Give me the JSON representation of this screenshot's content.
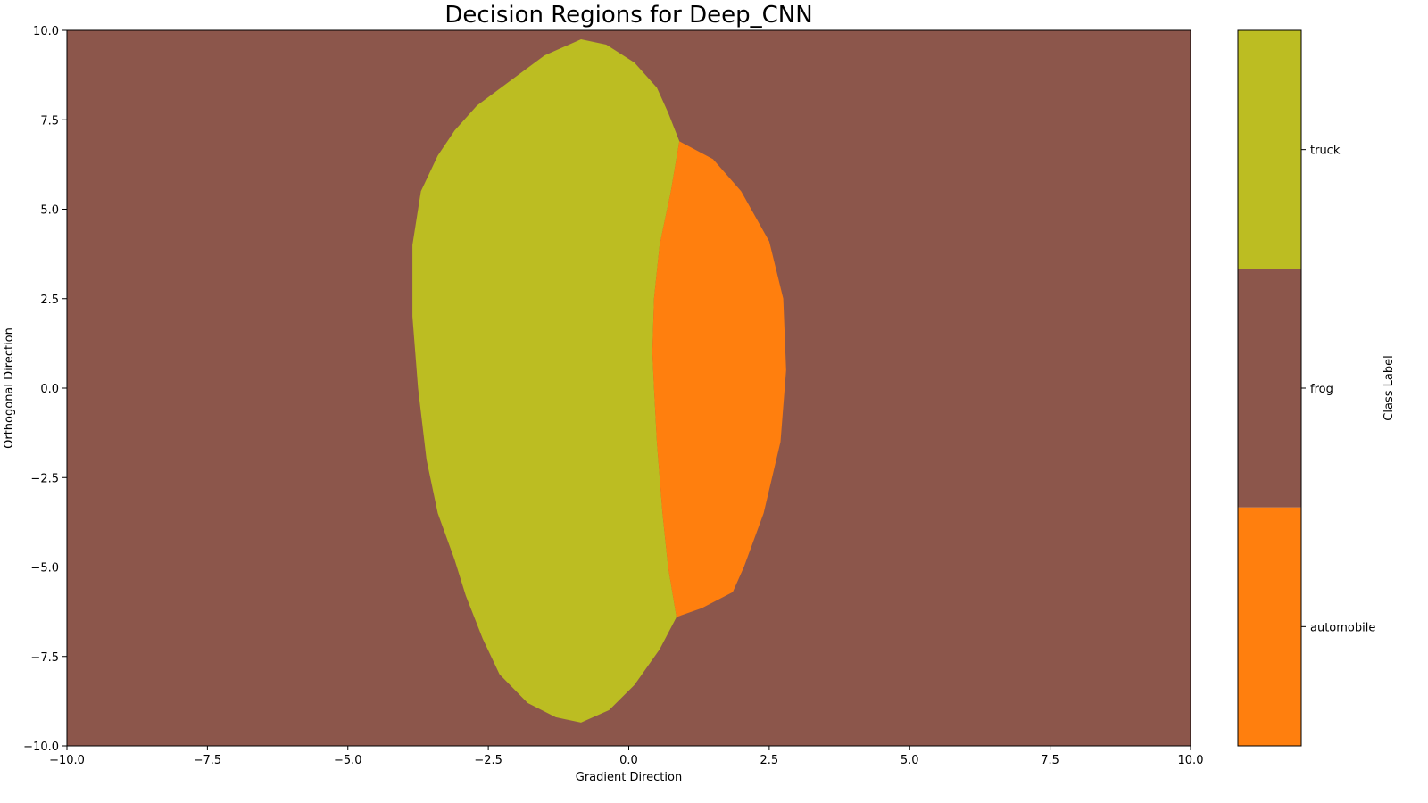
{
  "chart_data": {
    "type": "heatmap",
    "title": "Decision Regions for Deep_CNN",
    "xlabel": "Gradient Direction",
    "ylabel": "Orthogonal Direction",
    "xlim": [
      -10,
      10
    ],
    "ylim": [
      -10,
      10
    ],
    "xticks": [
      -10,
      -7.5,
      -5,
      -2.5,
      0,
      2.5,
      5,
      7.5,
      10
    ],
    "yticks": [
      -10,
      -7.5,
      -5,
      -2.5,
      0,
      2.5,
      5,
      7.5,
      10
    ],
    "xtick_labels": [
      "−10.0",
      "−7.5",
      "−5.0",
      "−2.5",
      "0.0",
      "2.5",
      "5.0",
      "7.5",
      "10.0"
    ],
    "ytick_labels": [
      "−10.0",
      "−7.5",
      "−5.0",
      "−2.5",
      "0.0",
      "2.5",
      "5.0",
      "7.5",
      "10.0"
    ],
    "grid": false,
    "background_class": "frog",
    "classes": [
      {
        "name": "automobile",
        "color": "#ff7f0e"
      },
      {
        "name": "frog",
        "color": "#8c564b"
      },
      {
        "name": "truck",
        "color": "#bcbd22"
      }
    ],
    "regions": [
      {
        "class": "truck",
        "boundary": [
          [
            -0.85,
            9.75
          ],
          [
            -0.4,
            9.6
          ],
          [
            0.1,
            9.1
          ],
          [
            0.5,
            8.4
          ],
          [
            0.7,
            7.7
          ],
          [
            0.9,
            6.9
          ],
          [
            0.75,
            5.5
          ],
          [
            0.55,
            4.0
          ],
          [
            0.45,
            2.5
          ],
          [
            0.42,
            1.0
          ],
          [
            0.45,
            0.0
          ],
          [
            0.5,
            -1.5
          ],
          [
            0.6,
            -3.5
          ],
          [
            0.7,
            -5.0
          ],
          [
            0.85,
            -6.4
          ],
          [
            0.55,
            -7.3
          ],
          [
            0.1,
            -8.3
          ],
          [
            -0.35,
            -9.0
          ],
          [
            -0.85,
            -9.35
          ],
          [
            -1.3,
            -9.2
          ],
          [
            -1.8,
            -8.8
          ],
          [
            -2.3,
            -8.0
          ],
          [
            -2.6,
            -7.0
          ],
          [
            -2.9,
            -5.8
          ],
          [
            -3.1,
            -4.8
          ],
          [
            -3.4,
            -3.5
          ],
          [
            -3.6,
            -2.0
          ],
          [
            -3.75,
            0.0
          ],
          [
            -3.85,
            2.0
          ],
          [
            -3.85,
            4.0
          ],
          [
            -3.7,
            5.5
          ],
          [
            -3.4,
            6.5
          ],
          [
            -3.1,
            7.2
          ],
          [
            -2.7,
            7.9
          ],
          [
            -2.1,
            8.6
          ],
          [
            -1.5,
            9.3
          ]
        ]
      },
      {
        "class": "automobile",
        "boundary": [
          [
            0.9,
            6.9
          ],
          [
            1.5,
            6.4
          ],
          [
            2.0,
            5.5
          ],
          [
            2.5,
            4.1
          ],
          [
            2.75,
            2.5
          ],
          [
            2.8,
            0.5
          ],
          [
            2.7,
            -1.5
          ],
          [
            2.4,
            -3.5
          ],
          [
            2.05,
            -5.0
          ],
          [
            1.85,
            -5.7
          ],
          [
            1.3,
            -6.15
          ],
          [
            0.85,
            -6.4
          ],
          [
            0.7,
            -5.0
          ],
          [
            0.6,
            -3.5
          ],
          [
            0.5,
            -1.5
          ],
          [
            0.45,
            0.0
          ],
          [
            0.42,
            1.0
          ],
          [
            0.45,
            2.5
          ],
          [
            0.55,
            4.0
          ],
          [
            0.75,
            5.5
          ]
        ]
      }
    ],
    "colorbar": {
      "label": "Class Label",
      "ticks": [
        "automobile",
        "frog",
        "truck"
      ]
    }
  }
}
